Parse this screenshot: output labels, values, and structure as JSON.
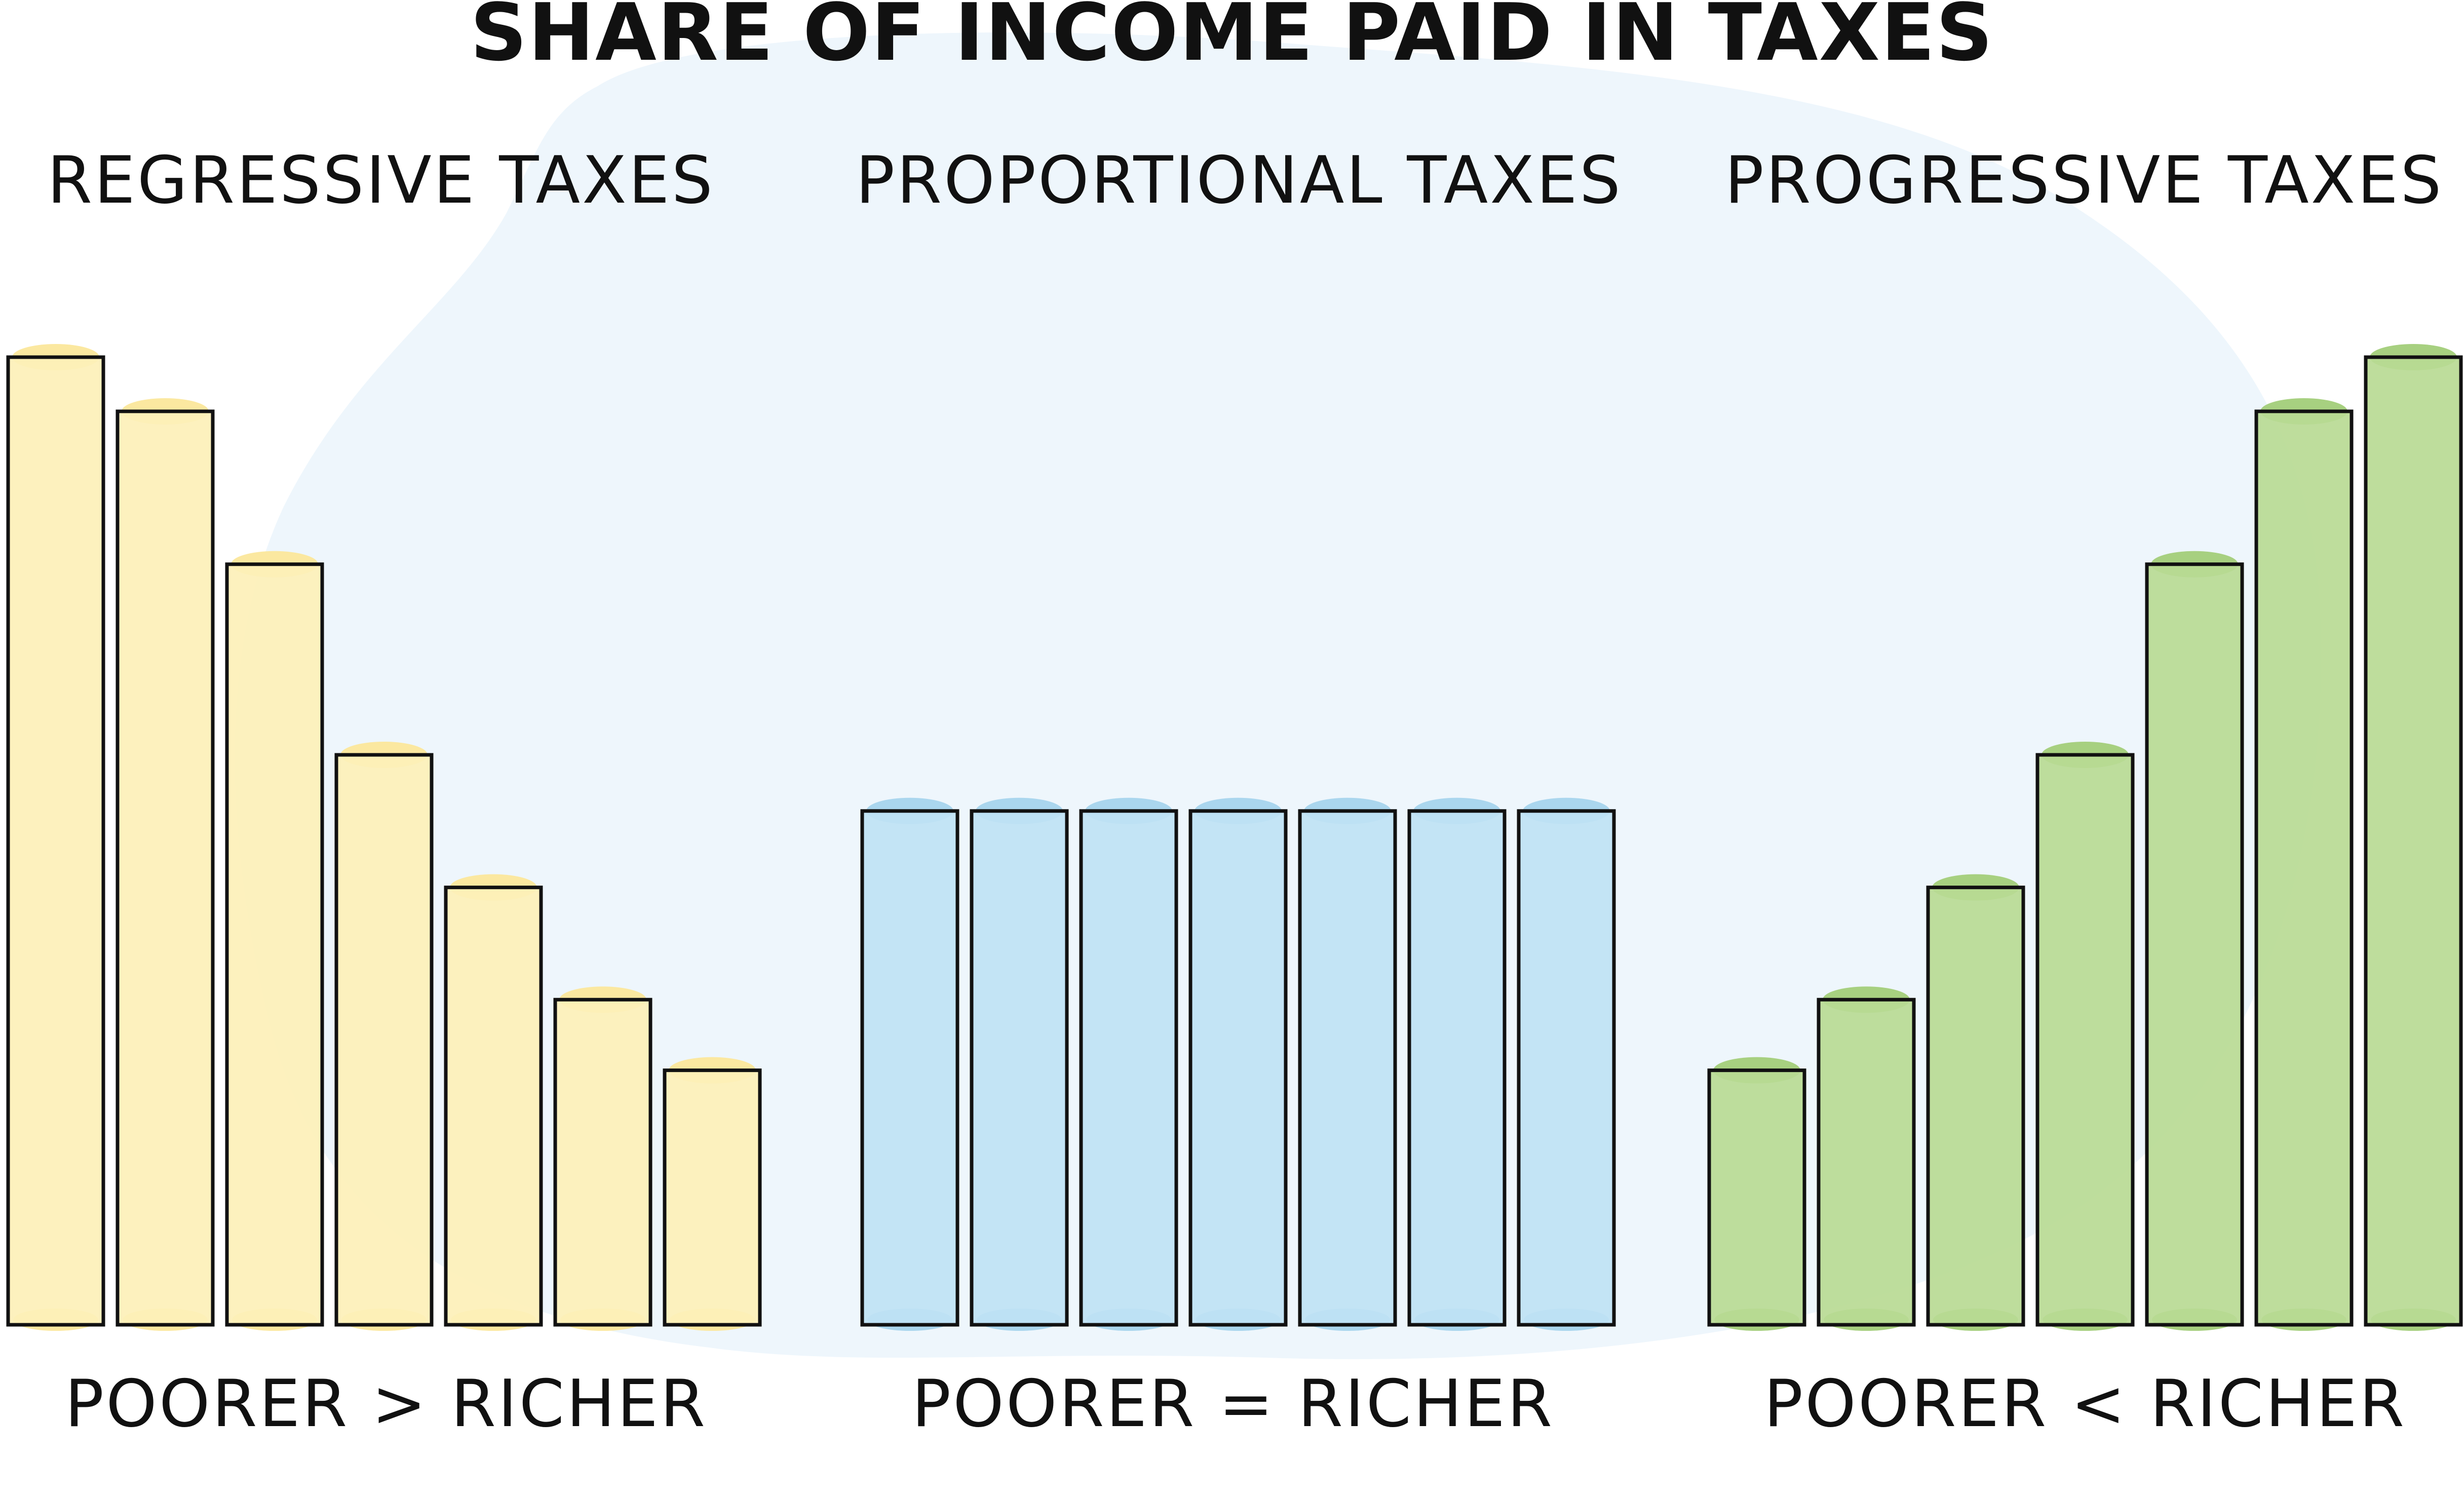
{
  "chart_data": [
    {
      "type": "bar",
      "title": "SHARE OF INCOME PAID IN TAXES",
      "panel_title": "REGRESSIVE TAXES",
      "caption": "POORER > RICHER",
      "color": "#fdf0b8",
      "top_color": "#fbe8a0",
      "values": [
        100,
        94.4,
        78.6,
        58.9,
        45.2,
        33.6,
        26.3
      ],
      "ylim": [
        0,
        100
      ],
      "grid": false,
      "legend": "none"
    },
    {
      "type": "bar",
      "panel_title": "PROPORTIONAL TAXES",
      "caption": "POORER = RICHER",
      "color": "#bfe2f4",
      "top_color": "#aad6ee",
      "values": [
        53.1,
        53.1,
        53.1,
        53.1,
        53.1,
        53.1,
        53.1
      ],
      "ylim": [
        0,
        100
      ],
      "grid": false,
      "legend": "none"
    },
    {
      "type": "bar",
      "panel_title": "PROGRESSIVE TAXES",
      "caption": "POORER < RICHER",
      "color": "#b8da94",
      "top_color": "#a7d080",
      "values": [
        26.3,
        33.6,
        45.2,
        58.9,
        78.6,
        94.4,
        100
      ],
      "ylim": [
        0,
        100
      ],
      "grid": false,
      "legend": "none"
    }
  ],
  "background_blob_color": "#eef6fc",
  "bar_outline_color": "#111111"
}
